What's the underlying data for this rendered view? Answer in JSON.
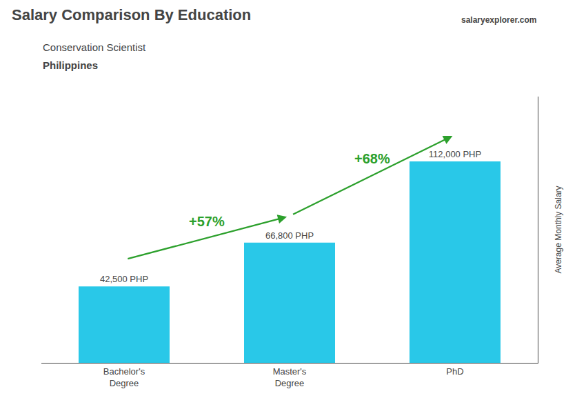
{
  "chart_data": {
    "type": "bar",
    "title": "Salary Comparison By Education",
    "subtitle": "Conservation Scientist",
    "country": "Philippines",
    "website": "salaryexplorer.com",
    "categories": [
      "Bachelor's\nDegree",
      "Master's\nDegree",
      "PhD"
    ],
    "values": [
      42500,
      66800,
      112000
    ],
    "value_labels": [
      "42,500 PHP",
      "66,800 PHP",
      "112,000 PHP"
    ],
    "data_labels": true,
    "color": "#29C8E8",
    "ylabel": "Average Monthly Salary",
    "ylim": [
      0,
      148000
    ],
    "tick_labels": "x",
    "grid": false,
    "annotations": [
      {
        "text": "+57%",
        "value": 57,
        "from": 0,
        "to": 1,
        "color": "#2ca02c"
      },
      {
        "text": "+68%",
        "value": 68,
        "from": 1,
        "to": 2,
        "color": "#2ca02c"
      }
    ]
  }
}
